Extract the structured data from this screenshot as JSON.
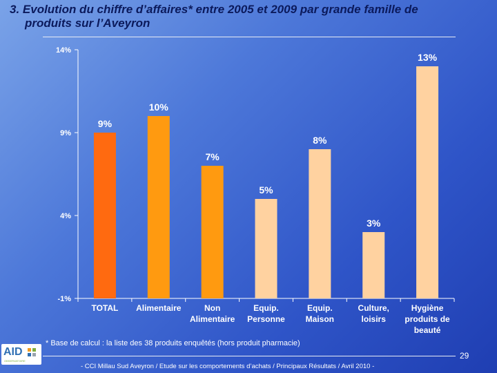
{
  "slide": {
    "title_line1": "3. Evolution du chiffre d’affaires* entre 2005 et 2009 par grande famille de",
    "title_line2": "produits sur l’Aveyron",
    "footnote": "* Base de calcul : la liste des 38 produits enquêtés (hors produit pharmacie)",
    "page_number": "29",
    "footer": "- CCI Millau Sud Aveyron / Etude sur les comportements d’achats / Principaux Résultats / Avril 2010 -",
    "logo_text": "AID",
    "logo_subtext": "OBSERVATOIRE"
  },
  "colors": {
    "total": "#ff6a10",
    "group1": "#ff9a10",
    "group2": "#ffd2a0",
    "axis": "#ffffff",
    "label": "#ffffff",
    "title": "#0b1a5c"
  },
  "chart_data": {
    "type": "bar",
    "title": "",
    "xlabel": "",
    "ylabel": "",
    "ylim": [
      -1,
      14
    ],
    "yticks": [
      14,
      9,
      4,
      -1
    ],
    "ytick_labels": [
      "14%",
      "9%",
      "4%",
      "-1%"
    ],
    "categories": [
      [
        "TOTAL"
      ],
      [
        "Alimentaire"
      ],
      [
        "Non",
        "Alimentaire"
      ],
      [
        "Equip.",
        "Personne"
      ],
      [
        "Equip.",
        "Maison"
      ],
      [
        "Culture,",
        "loisirs"
      ],
      [
        "Hygiène",
        "produits de",
        "beauté"
      ]
    ],
    "values": [
      9,
      10,
      7,
      5,
      8,
      3,
      13
    ],
    "value_labels": [
      "9%",
      "10%",
      "7%",
      "5%",
      "8%",
      "3%",
      "13%"
    ],
    "bar_groups": [
      "total",
      "group1",
      "group1",
      "group2",
      "group2",
      "group2",
      "group2"
    ]
  }
}
